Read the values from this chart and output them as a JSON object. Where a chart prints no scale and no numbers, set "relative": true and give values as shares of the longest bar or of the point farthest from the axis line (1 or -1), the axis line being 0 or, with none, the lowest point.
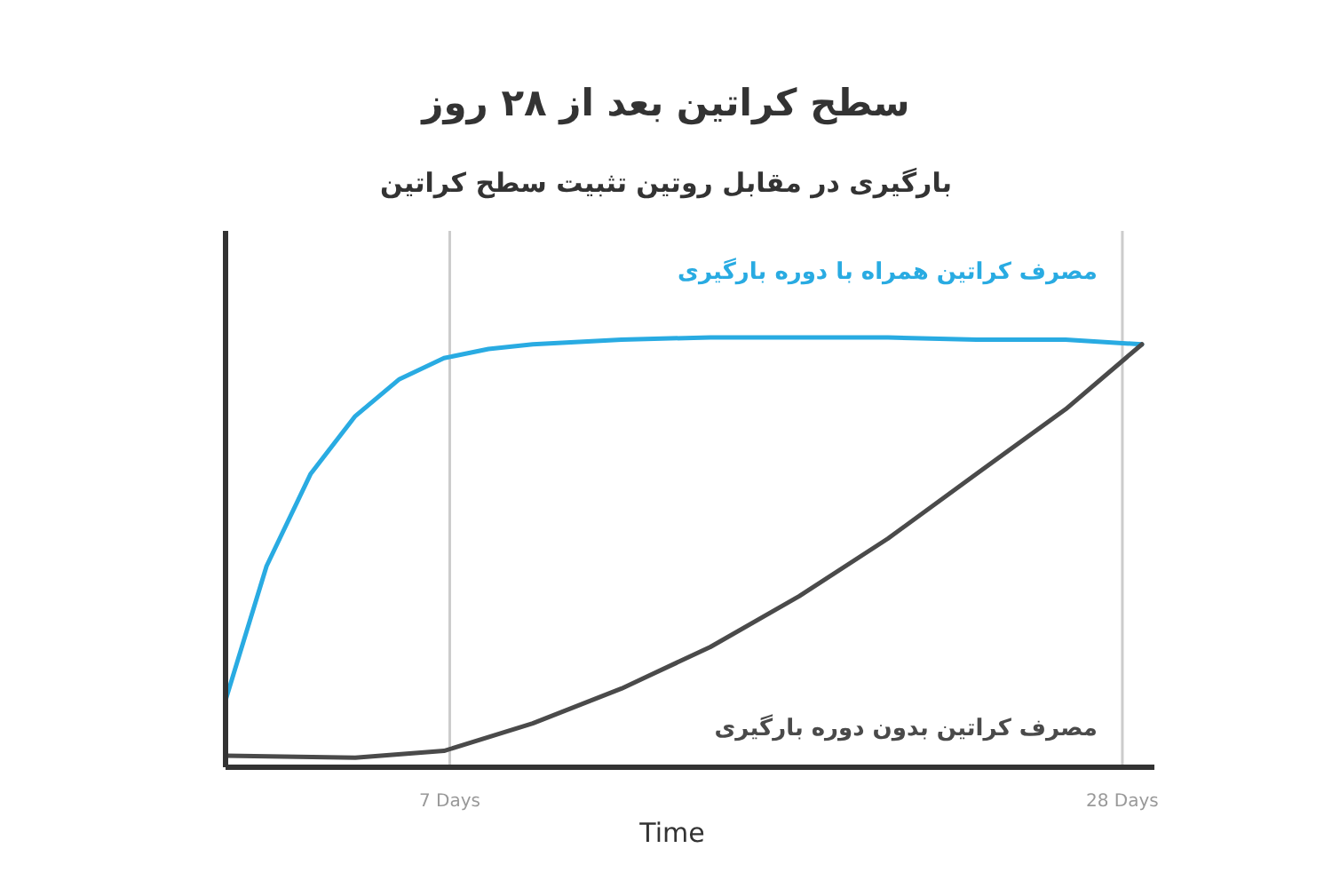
{
  "chart_data": {
    "type": "line",
    "title": "سطح کراتین بعد از ۲۸ روز",
    "subtitle": "بارگیری در مقابل روتین تثبیت سطح کراتین",
    "xlabel": "Time",
    "relative": true,
    "xlim": [
      0,
      29
    ],
    "xticks": [
      {
        "value": 7,
        "label": "7 Days"
      },
      {
        "value": 28,
        "label": "28 Days"
      }
    ],
    "grid": "x",
    "tick_labels": "x",
    "line_style": "solid",
    "series": [
      {
        "name": "مصرف کراتین همراه با دوره بارگیری",
        "color": "#29abe2",
        "x": [
          0,
          1.28,
          2.66,
          4.05,
          5.43,
          6.82,
          8.21,
          9.59,
          12.36,
          15.14,
          17.91,
          20.68,
          23.45,
          26.23,
          28.61
        ],
        "values": [
          0.156,
          0.468,
          0.683,
          0.817,
          0.903,
          0.952,
          0.973,
          0.984,
          0.995,
          1,
          1,
          1,
          0.995,
          0.995,
          0.984
        ]
      },
      {
        "name": "مصرف کراتین بدون دوره بارگیری",
        "color": "#4a4a4a",
        "x": [
          0,
          4.05,
          6.82,
          9.59,
          12.36,
          15.14,
          17.91,
          20.68,
          23.45,
          26.23,
          28.61
        ],
        "values": [
          0.027,
          0.022,
          0.038,
          0.102,
          0.183,
          0.28,
          0.398,
          0.532,
          0.683,
          0.833,
          0.984
        ]
      }
    ]
  }
}
